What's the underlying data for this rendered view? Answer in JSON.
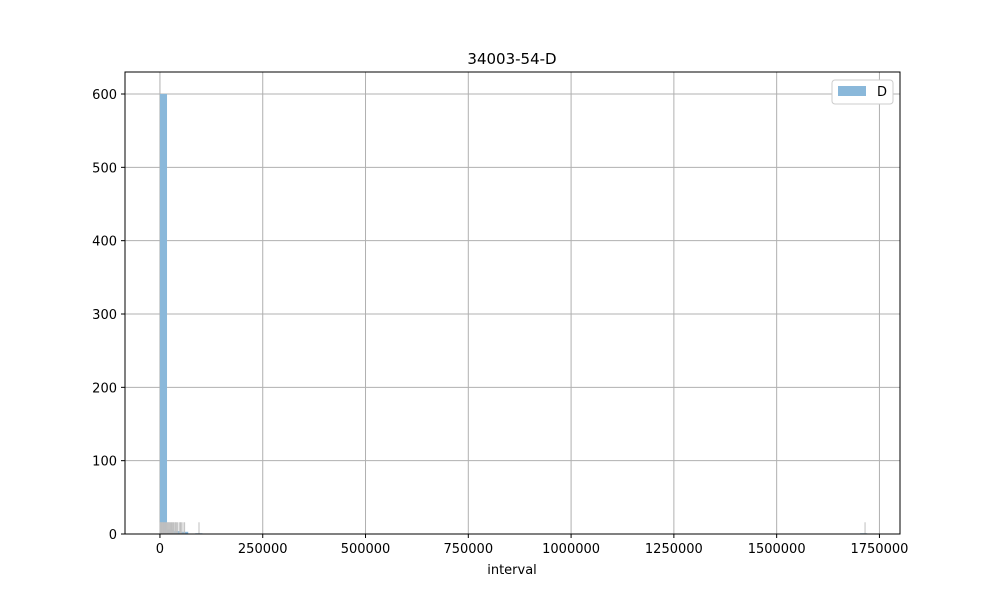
{
  "chart_data": {
    "type": "bar",
    "title": "34003-54-D",
    "xlabel": "interval",
    "ylabel": "",
    "xlim": [
      -85000,
      1800000
    ],
    "ylim": [
      0,
      630
    ],
    "grid": true,
    "legend": {
      "placement": "top-right",
      "entries": [
        "D"
      ]
    },
    "xticks": [
      0,
      250000,
      500000,
      750000,
      1000000,
      1250000,
      1500000,
      1750000
    ],
    "xtick_labels": [
      "0",
      "250000",
      "500000",
      "750000",
      "1000000",
      "1250000",
      "1500000",
      "1750000"
    ],
    "yticks": [
      0,
      100,
      200,
      300,
      400,
      500,
      600
    ],
    "ytick_labels": [
      "0",
      "100",
      "200",
      "300",
      "400",
      "500",
      "600"
    ],
    "series": [
      {
        "name": "D",
        "type": "histogram",
        "color": "#8ab8da",
        "bins": [
          {
            "x0": 0,
            "x1": 17200,
            "count": 600
          },
          {
            "x0": 17200,
            "x1": 34400,
            "count": 6
          },
          {
            "x0": 34400,
            "x1": 51600,
            "count": 4
          },
          {
            "x0": 51600,
            "x1": 68800,
            "count": 3
          },
          {
            "x0": 86000,
            "x1": 103200,
            "count": 1
          },
          {
            "x0": 1703000,
            "x1": 1720000,
            "count": 1
          }
        ]
      }
    ],
    "rug": {
      "color": "#bfbfbf",
      "height_value": 16,
      "x": [
        0,
        1500,
        3000,
        4500,
        6000,
        7500,
        9000,
        11000,
        13000,
        15000,
        17000,
        19000,
        21000,
        23000,
        25000,
        27000,
        29000,
        31000,
        33000,
        36000,
        38000,
        40000,
        43000,
        47000,
        50000,
        52000,
        56000,
        60000,
        95000,
        1715000
      ]
    }
  }
}
